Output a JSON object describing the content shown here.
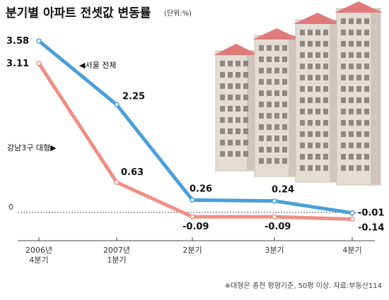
{
  "header": {
    "title": "분기별 아파트 전셋값 변동률",
    "unit": "(단위:%)"
  },
  "footnote": "※대형은 종전 평형기준, 50평 이상. 자료:부동산114",
  "colors": {
    "seoul": "#4a9fd8",
    "gangnam": "#ef8f84",
    "zero_line": "#555555",
    "roof": "#e07a7a"
  },
  "chart_data": {
    "type": "line",
    "title": "분기별 아파트 전셋값 변동률",
    "unit": "(단위:%)",
    "categories": [
      [
        "2006년",
        "4분기"
      ],
      [
        "2007년",
        "1분기"
      ],
      [
        "2분기"
      ],
      [
        "3분기"
      ],
      [
        "4분기"
      ]
    ],
    "ylim": [
      -0.3,
      3.8
    ],
    "zero_label": "0",
    "series": [
      {
        "name": "◀서울 전체",
        "key": "seoul",
        "values": [
          3.58,
          2.25,
          0.26,
          0.24,
          -0.01
        ],
        "labels": [
          "3.58",
          "2.25",
          "0.26",
          "0.24",
          "-0.01"
        ]
      },
      {
        "name": "강남3구 대형▶",
        "key": "gangnam",
        "values": [
          3.11,
          0.63,
          -0.09,
          -0.09,
          -0.14
        ],
        "labels": [
          "3.11",
          "0.63",
          "-0.09",
          "-0.09",
          "-0.14"
        ]
      }
    ]
  }
}
